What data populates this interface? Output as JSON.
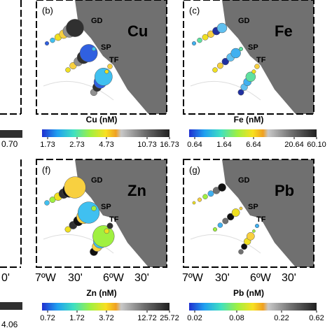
{
  "panels": [
    {
      "label": "(b)",
      "element": "Cu",
      "sites": [
        "GD",
        "SP",
        "TF"
      ],
      "colorbar": {
        "title": "Cu (nM)",
        "ticks": [
          "1.73",
          "2.73",
          "4.73",
          "10.73",
          "16.73"
        ]
      }
    },
    {
      "label": "(c)",
      "element": "Fe",
      "sites": [
        "GD",
        "SP",
        "TF"
      ],
      "colorbar": {
        "title": "Fe (nM)",
        "ticks": [
          "0.64",
          "1.64",
          "6.64",
          "20.64",
          "60.10"
        ]
      }
    },
    {
      "label": "(f)",
      "element": "Zn",
      "sites": [
        "GD",
        "SP",
        "TF"
      ],
      "colorbar": {
        "title": "Zn (nM)",
        "ticks": [
          "0.72",
          "1.72",
          "3.72",
          "12.72",
          "25.72"
        ]
      }
    },
    {
      "label": "(g)",
      "element": "Pb",
      "sites": [
        "GD",
        "SP",
        "TF"
      ],
      "colorbar": {
        "title": "Pb (nM)",
        "ticks": [
          "0.02",
          "0.08",
          "0.22",
          "0.62"
        ]
      }
    }
  ],
  "longitude_labels": [
    "7ºW",
    "30'",
    "6ºW",
    "30'"
  ],
  "left_cut": {
    "top_tick": "0.70",
    "bottom_tick": "4.06",
    "lon_tick": "0'"
  }
}
